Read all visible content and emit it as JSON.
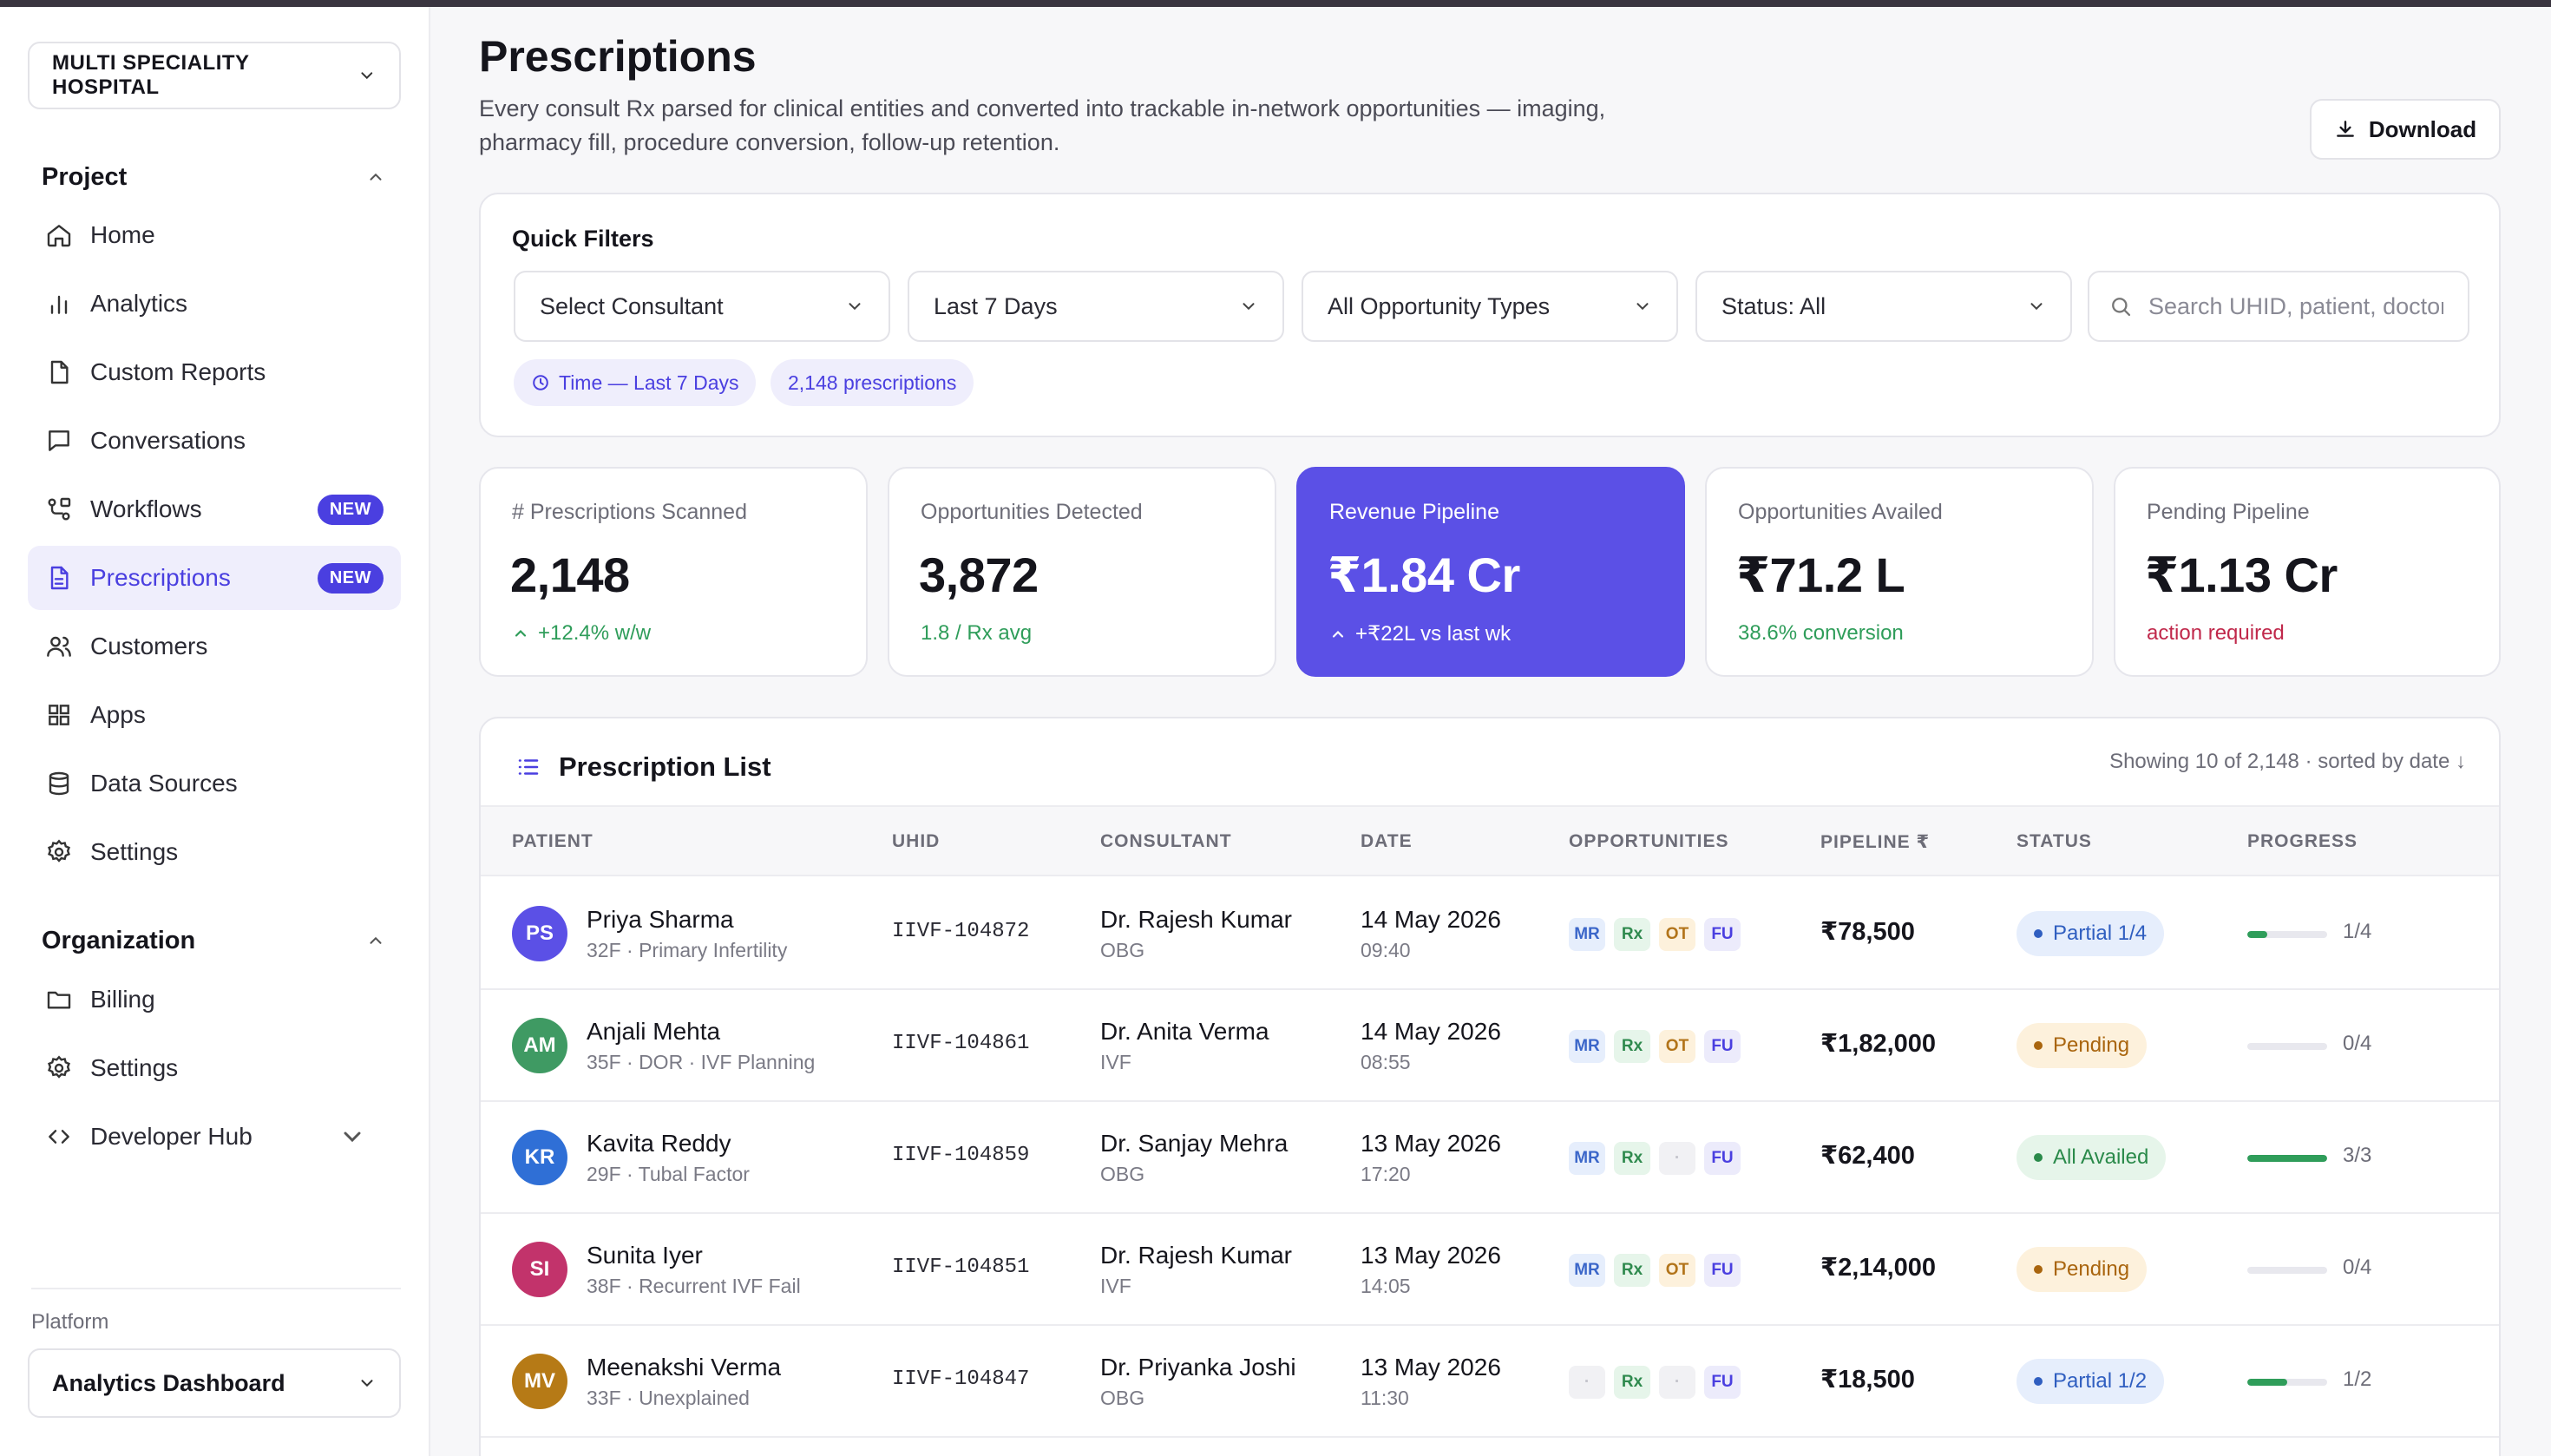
{
  "sidebar": {
    "org": "MULTI SPECIALITY HOSPITAL",
    "project_label": "Project",
    "project_items": [
      {
        "label": "Home",
        "icon": "home-icon"
      },
      {
        "label": "Analytics",
        "icon": "bar-chart-icon"
      },
      {
        "label": "Custom Reports",
        "icon": "file-icon"
      },
      {
        "label": "Conversations",
        "icon": "chat-icon"
      },
      {
        "label": "Workflows",
        "icon": "workflow-icon",
        "badge": "NEW"
      },
      {
        "label": "Prescriptions",
        "icon": "prescription-icon",
        "badge": "NEW",
        "active": true
      },
      {
        "label": "Customers",
        "icon": "users-icon"
      },
      {
        "label": "Apps",
        "icon": "grid-icon"
      },
      {
        "label": "Data Sources",
        "icon": "database-icon"
      },
      {
        "label": "Settings",
        "icon": "gear-icon"
      }
    ],
    "org_label": "Organization",
    "org_items": [
      {
        "label": "Billing",
        "icon": "folder-icon"
      },
      {
        "label": "Settings",
        "icon": "gear-icon"
      },
      {
        "label": "Developer Hub",
        "icon": "code-icon"
      }
    ],
    "platform_label": "Platform",
    "platform_value": "Analytics Dashboard"
  },
  "header": {
    "title": "Prescriptions",
    "subtitle": "Every consult Rx parsed for clinical entities and converted into trackable in-network opportunities — imaging, pharmacy fill, procedure conversion, follow-up retention.",
    "download": "Download"
  },
  "filters": {
    "title": "Quick Filters",
    "consultant": "Select Consultant",
    "range": "Last 7 Days",
    "type": "All Opportunity Types",
    "status": "Status: All",
    "search_placeholder": "Search UHID, patient, doctor",
    "chip_time": "Time — Last 7 Days",
    "chip_count": "2,148 prescriptions"
  },
  "stats": [
    {
      "label": "# Prescriptions Scanned",
      "value": "2,148",
      "note": "+12.4% w/w",
      "arrow": true
    },
    {
      "label": "Opportunities Detected",
      "value": "3,872",
      "note": "1.8 / Rx avg"
    },
    {
      "label": "Revenue Pipeline",
      "value": "₹1.84 Cr",
      "note": "+₹22L vs last wk",
      "arrow": true,
      "highlight": true
    },
    {
      "label": "Opportunities Availed",
      "value": "₹71.2 L",
      "note": "38.6% conversion"
    },
    {
      "label": "Pending Pipeline",
      "value": "₹1.13 Cr",
      "note": "action required",
      "alert": true
    }
  ],
  "list": {
    "title": "Prescription List",
    "meta": "Showing 10 of 2,148 · sorted by date ↓",
    "columns": [
      "PATIENT",
      "UHID",
      "CONSULTANT",
      "DATE",
      "OPPORTUNITIES",
      "PIPELINE ₹",
      "STATUS",
      "PROGRESS"
    ],
    "rows": [
      {
        "initials": "PS",
        "color": "#5b50e6",
        "name": "Priya Sharma",
        "desc": "32F · Primary Infertility",
        "uhid": "IIVF-104872",
        "consultant": "Dr. Rajesh Kumar",
        "dept": "OBG",
        "date": "14 May 2026",
        "time": "09:40",
        "opps": [
          "MR",
          "Rx",
          "OT",
          "FU"
        ],
        "pipeline": "₹78,500",
        "status": "Partial 1/4",
        "status_kind": "partial",
        "progress": 0.25,
        "progress_label": "1/4"
      },
      {
        "initials": "AM",
        "color": "#3f9a63",
        "name": "Anjali Mehta",
        "desc": "35F · DOR · IVF Planning",
        "uhid": "IIVF-104861",
        "consultant": "Dr. Anita Verma",
        "dept": "IVF",
        "date": "14 May 2026",
        "time": "08:55",
        "opps": [
          "MR",
          "Rx",
          "OT",
          "FU"
        ],
        "pipeline": "₹1,82,000",
        "status": "Pending",
        "status_kind": "pending",
        "progress": 0,
        "progress_label": "0/4"
      },
      {
        "initials": "KR",
        "color": "#2f6fd6",
        "name": "Kavita Reddy",
        "desc": "29F · Tubal Factor",
        "uhid": "IIVF-104859",
        "consultant": "Dr. Sanjay Mehra",
        "dept": "OBG",
        "date": "13 May 2026",
        "time": "17:20",
        "opps": [
          "MR",
          "Rx",
          "·",
          "FU"
        ],
        "pipeline": "₹62,400",
        "status": "All Availed",
        "status_kind": "done",
        "progress": 1,
        "progress_label": "3/3"
      },
      {
        "initials": "SI",
        "color": "#c2336b",
        "name": "Sunita Iyer",
        "desc": "38F · Recurrent IVF Fail",
        "uhid": "IIVF-104851",
        "consultant": "Dr. Rajesh Kumar",
        "dept": "IVF",
        "date": "13 May 2026",
        "time": "14:05",
        "opps": [
          "MR",
          "Rx",
          "OT",
          "FU"
        ],
        "pipeline": "₹2,14,000",
        "status": "Pending",
        "status_kind": "pending",
        "progress": 0,
        "progress_label": "0/4"
      },
      {
        "initials": "MV",
        "color": "#b67a16",
        "name": "Meenakshi Verma",
        "desc": "33F · Unexplained",
        "uhid": "IIVF-104847",
        "consultant": "Dr. Priyanka Joshi",
        "dept": "OBG",
        "date": "13 May 2026",
        "time": "11:30",
        "opps": [
          "·",
          "Rx",
          "·",
          "FU"
        ],
        "pipeline": "₹18,500",
        "status": "Partial 1/2",
        "status_kind": "partial",
        "progress": 0.5,
        "progress_label": "1/2"
      }
    ]
  }
}
